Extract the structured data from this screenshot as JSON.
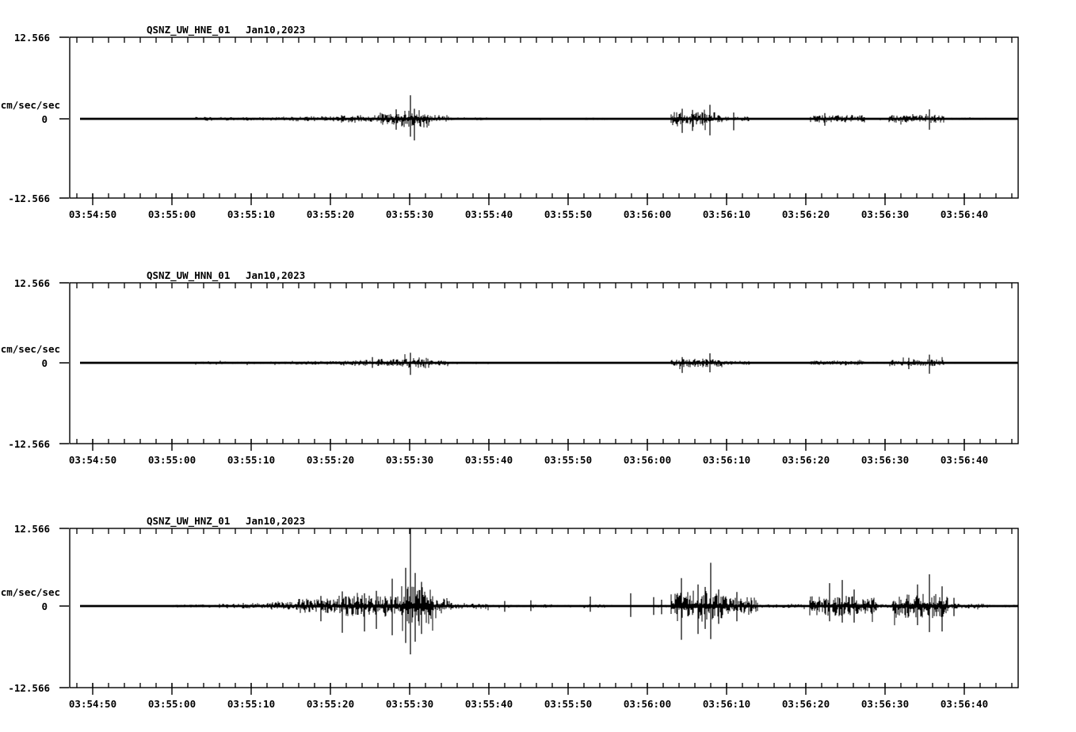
{
  "page": {
    "background_color": "#ffffff",
    "ink_color": "#000000",
    "description": "Three-channel seismogram strip chart for station QSNZ (UW network), channels HNE/HNN/HNZ, Jan 10 2023, 03:54:47-03:56:47"
  },
  "chart_data": [
    {
      "type": "line",
      "subtype": "seismogram",
      "title": "QSNZ_UW_HNE_01",
      "date_label": "Jan10,2023",
      "ylabel": "cm/sec/sec",
      "ylim": [
        -12.566,
        12.566
      ],
      "ytick_labels": {
        "top": "12.566",
        "zero": "0",
        "bottom": "-12.566"
      },
      "xtick_labels": [
        "03:54:50",
        "03:55:00",
        "03:55:10",
        "03:55:20",
        "03:55:30",
        "03:55:40",
        "03:55:50",
        "03:56:00",
        "03:56:10",
        "03:56:20",
        "03:56:30",
        "03:56:40"
      ],
      "x_major_interval_s": 10,
      "x_minor_interval_s": 2,
      "x_window": [
        "03:54:47",
        "03:56:47"
      ],
      "grid": false,
      "legend": "none",
      "baseline_value": 0,
      "noise_floor": 0.04,
      "seed": 101,
      "envelope": [
        [
          5,
          13,
          0.08
        ],
        [
          13,
          17,
          0.3
        ],
        [
          17,
          25,
          0.26
        ],
        [
          25,
          31,
          0.38
        ],
        [
          31,
          36,
          0.55
        ],
        [
          36,
          39,
          0.9
        ],
        [
          39,
          42.5,
          1.3
        ],
        [
          42.5,
          45,
          0.55
        ],
        [
          45,
          50,
          0.22
        ],
        [
          50,
          56,
          0.07
        ],
        [
          56,
          60,
          0.12
        ],
        [
          62,
          65,
          0.18
        ],
        [
          73,
          79.5,
          1.0
        ],
        [
          79.5,
          83,
          0.35
        ],
        [
          83,
          90,
          0.07
        ],
        [
          90.5,
          97.5,
          0.55
        ],
        [
          97.5,
          100.5,
          0.12
        ],
        [
          100.5,
          107.5,
          0.6
        ],
        [
          107.5,
          113,
          0.16
        ],
        [
          113,
          117,
          0.06
        ]
      ],
      "spikes": [
        [
          38.3,
          1.5,
          1.7
        ],
        [
          40.1,
          3.7,
          2.8
        ],
        [
          40.6,
          1.6,
          3.4
        ],
        [
          74.4,
          1.6,
          2.2
        ],
        [
          75.7,
          1.4,
          1.9
        ],
        [
          77.9,
          2.2,
          2.6
        ],
        [
          80.9,
          1.0,
          1.8
        ],
        [
          92.4,
          0.9,
          1.1
        ],
        [
          105.6,
          1.5,
          1.7
        ]
      ]
    },
    {
      "type": "line",
      "subtype": "seismogram",
      "title": "QSNZ_UW_HNN_01",
      "date_label": "Jan10,2023",
      "ylabel": "cm/sec/sec",
      "ylim": [
        -12.566,
        12.566
      ],
      "ytick_labels": {
        "top": "12.566",
        "zero": "0",
        "bottom": "-12.566"
      },
      "xtick_labels": [
        "03:54:50",
        "03:55:00",
        "03:55:10",
        "03:55:20",
        "03:55:30",
        "03:55:40",
        "03:55:50",
        "03:56:00",
        "03:56:10",
        "03:56:20",
        "03:56:30",
        "03:56:40"
      ],
      "x_major_interval_s": 10,
      "x_minor_interval_s": 2,
      "x_window": [
        "03:54:47",
        "03:56:47"
      ],
      "grid": false,
      "legend": "none",
      "baseline_value": 0,
      "noise_floor": 0.035,
      "seed": 202,
      "envelope": [
        [
          5,
          13,
          0.06
        ],
        [
          13,
          17,
          0.2
        ],
        [
          17,
          25,
          0.2
        ],
        [
          25,
          31,
          0.28
        ],
        [
          31,
          36,
          0.45
        ],
        [
          36,
          39,
          0.6
        ],
        [
          39,
          42.5,
          0.8
        ],
        [
          42.5,
          45,
          0.4
        ],
        [
          45,
          50,
          0.15
        ],
        [
          50,
          56,
          0.05
        ],
        [
          56,
          60,
          0.1
        ],
        [
          62,
          65,
          0.12
        ],
        [
          73,
          79.5,
          0.65
        ],
        [
          79.5,
          83,
          0.3
        ],
        [
          83,
          90,
          0.06
        ],
        [
          90.5,
          97.5,
          0.35
        ],
        [
          97.5,
          100.5,
          0.1
        ],
        [
          100.5,
          107.5,
          0.5
        ],
        [
          107.5,
          113,
          0.12
        ],
        [
          113,
          117,
          0.05
        ]
      ],
      "spikes": [
        [
          35.3,
          0.9,
          0.8
        ],
        [
          40.1,
          1.6,
          1.9
        ],
        [
          74.4,
          0.9,
          1.6
        ],
        [
          77.9,
          1.5,
          1.5
        ],
        [
          103.0,
          0.8,
          1.0
        ],
        [
          105.6,
          1.3,
          1.7
        ]
      ]
    },
    {
      "type": "line",
      "subtype": "seismogram",
      "title": "QSNZ_UW_HNZ_01",
      "date_label": "Jan10,2023",
      "ylabel": "cm/sec/sec",
      "ylim": [
        -12.566,
        12.566
      ],
      "ytick_labels": {
        "top": "12.566",
        "zero": "0",
        "bottom": "-12.566"
      },
      "xtick_labels": [
        "03:54:50",
        "03:55:00",
        "03:55:10",
        "03:55:20",
        "03:55:30",
        "03:55:40",
        "03:55:50",
        "03:56:00",
        "03:56:10",
        "03:56:20",
        "03:56:30",
        "03:56:40"
      ],
      "x_major_interval_s": 10,
      "x_minor_interval_s": 2,
      "x_window": [
        "03:54:47",
        "03:56:47"
      ],
      "grid": false,
      "legend": "none",
      "baseline_value": 0,
      "noise_floor": 0.05,
      "seed": 303,
      "envelope": [
        [
          3,
          10,
          0.1
        ],
        [
          10,
          16,
          0.22
        ],
        [
          16,
          22,
          0.35
        ],
        [
          22,
          26,
          0.6
        ],
        [
          26,
          31,
          1.1
        ],
        [
          31,
          36,
          1.6
        ],
        [
          36,
          39,
          1.6
        ],
        [
          39,
          43,
          3.0
        ],
        [
          43,
          45.5,
          1.1
        ],
        [
          45.5,
          50,
          0.45
        ],
        [
          50,
          55,
          0.18
        ],
        [
          55,
          58,
          0.3
        ],
        [
          58,
          62,
          0.15
        ],
        [
          62,
          65,
          0.3
        ],
        [
          65,
          71,
          0.12
        ],
        [
          71,
          73,
          0.2
        ],
        [
          73,
          80,
          2.3
        ],
        [
          80,
          84,
          1.3
        ],
        [
          84,
          90,
          0.28
        ],
        [
          90.5,
          99,
          1.5
        ],
        [
          99,
          101,
          0.3
        ],
        [
          101,
          108,
          1.8
        ],
        [
          108,
          113,
          0.35
        ],
        [
          113,
          116.8,
          0.2
        ]
      ],
      "spikes": [
        [
          28.8,
          1.6,
          2.4
        ],
        [
          31.5,
          2.3,
          4.2
        ],
        [
          34.3,
          2.0,
          4.0
        ],
        [
          35.8,
          2.4,
          3.6
        ],
        [
          37.8,
          4.3,
          4.6
        ],
        [
          39.5,
          6.0,
          5.8
        ],
        [
          40.1,
          12.3,
          7.6
        ],
        [
          40.7,
          5.2,
          5.6
        ],
        [
          41.5,
          3.8,
          4.4
        ],
        [
          52.0,
          0.8,
          0.9
        ],
        [
          55.3,
          0.9,
          0.8
        ],
        [
          62.8,
          1.5,
          0.9
        ],
        [
          67.9,
          2.0,
          1.7
        ],
        [
          70.8,
          1.4,
          1.4
        ],
        [
          71.8,
          1.0,
          1.3
        ],
        [
          74.3,
          4.4,
          5.3
        ],
        [
          76.4,
          3.4,
          4.4
        ],
        [
          77.3,
          3.0,
          3.6
        ],
        [
          78.0,
          6.8,
          5.2
        ],
        [
          79.0,
          2.6,
          2.8
        ],
        [
          81.3,
          2.2,
          2.4
        ],
        [
          93.0,
          3.6,
          2.4
        ],
        [
          94.6,
          4.1,
          2.6
        ],
        [
          96.1,
          2.6,
          2.6
        ],
        [
          104.1,
          3.4,
          3.0
        ],
        [
          105.6,
          5.0,
          4.1
        ],
        [
          107.2,
          3.1,
          4.0
        ],
        [
          108.7,
          1.3,
          1.6
        ]
      ]
    }
  ]
}
